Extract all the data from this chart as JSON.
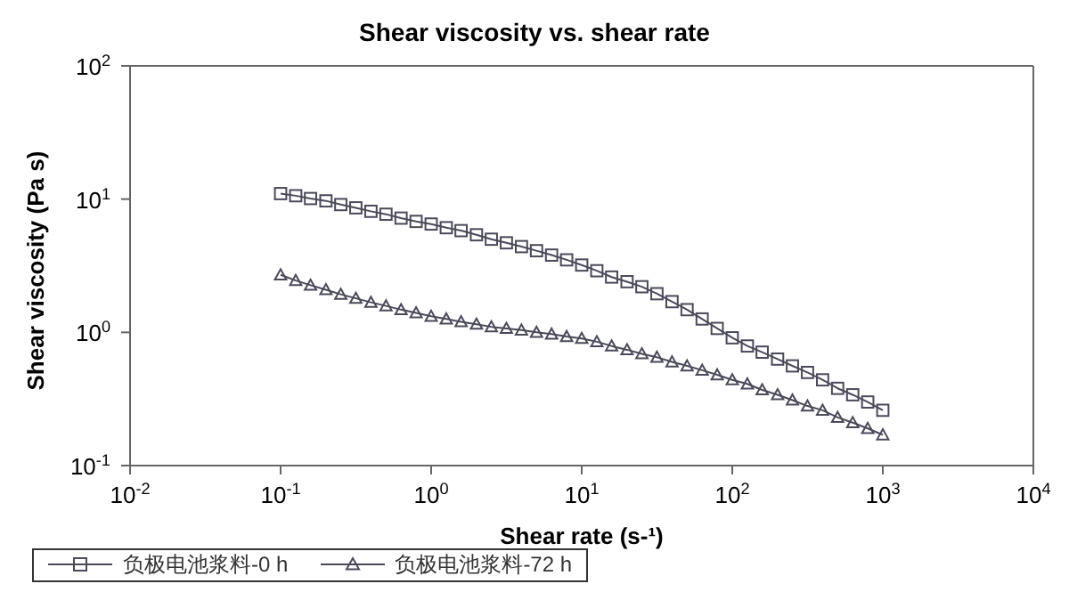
{
  "chart_data": {
    "type": "line",
    "title": "Shear viscosity vs. shear rate",
    "xlabel": "Shear rate (s-¹)",
    "ylabel": "Shear viscosity (Pa s)",
    "log": "xy",
    "legend": "bottom",
    "line_style": "solid",
    "x": [
      0.1,
      0.126,
      0.158,
      0.2,
      0.251,
      0.316,
      0.398,
      0.501,
      0.631,
      0.794,
      1,
      1.26,
      1.58,
      2,
      2.51,
      3.16,
      3.98,
      5.01,
      6.31,
      7.94,
      10,
      12.6,
      15.8,
      20,
      25.1,
      31.6,
      39.8,
      50.1,
      63.1,
      79.4,
      100,
      126,
      158,
      200,
      251,
      316,
      398,
      501,
      631,
      794,
      1000
    ],
    "xlim": [
      0.01,
      10000
    ],
    "xticks": [
      {
        "value": 0.01,
        "label": "10$^{-2}$"
      },
      {
        "value": 0.1,
        "label": "10$^{-1}$"
      },
      {
        "value": 1,
        "label": "10$^{0}$"
      },
      {
        "value": 10,
        "label": "10$^{1}$"
      },
      {
        "value": 100,
        "label": "10$^{2}$"
      },
      {
        "value": 1000,
        "label": "10$^{3}$"
      },
      {
        "value": 10000,
        "label": "10$^{4}$"
      }
    ],
    "ylim": [
      0.1,
      100
    ],
    "yticks": [
      {
        "value": 0.1,
        "label": "10$^{-1}$"
      },
      {
        "value": 1,
        "label": "10$^{0}$"
      },
      {
        "value": 10,
        "label": "10$^{1}$"
      },
      {
        "value": 100,
        "label": "10$^{2}$"
      }
    ],
    "series": [
      {
        "name": "负极电池浆料-0 h",
        "color": "#4a4a5a",
        "marker": "square",
        "values": [
          11.0,
          10.6,
          10.1,
          9.7,
          9.1,
          8.6,
          8.1,
          7.7,
          7.2,
          6.8,
          6.5,
          6.1,
          5.8,
          5.4,
          5.0,
          4.7,
          4.4,
          4.1,
          3.8,
          3.5,
          3.2,
          2.9,
          2.6,
          2.4,
          2.2,
          1.95,
          1.7,
          1.48,
          1.26,
          1.07,
          0.91,
          0.79,
          0.71,
          0.63,
          0.56,
          0.5,
          0.44,
          0.38,
          0.34,
          0.3,
          0.26
        ]
      },
      {
        "name": "负极电池浆料-72 h",
        "color": "#4a4a5a",
        "marker": "triangle",
        "values": [
          2.7,
          2.45,
          2.26,
          2.09,
          1.93,
          1.8,
          1.68,
          1.58,
          1.48,
          1.4,
          1.32,
          1.26,
          1.2,
          1.15,
          1.1,
          1.07,
          1.04,
          1.0,
          0.97,
          0.93,
          0.9,
          0.85,
          0.79,
          0.74,
          0.69,
          0.65,
          0.6,
          0.56,
          0.52,
          0.48,
          0.44,
          0.41,
          0.37,
          0.34,
          0.31,
          0.28,
          0.26,
          0.23,
          0.21,
          0.19,
          0.17
        ]
      }
    ]
  }
}
